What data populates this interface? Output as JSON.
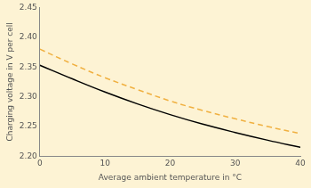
{
  "chart_data": {
    "type": "line",
    "x_label": "Average ambient temperature in °C",
    "y_label": "Charging voltage in V per cell",
    "x": [
      0,
      5,
      10,
      15,
      20,
      25,
      30,
      35,
      40
    ],
    "series": [
      {
        "color": "#f0b040",
        "line_style": "dashed",
        "values": [
          2.38,
          2.355,
          2.332,
          2.312,
          2.293,
          2.277,
          2.263,
          2.25,
          2.238
        ]
      },
      {
        "color": "#000000",
        "line_style": "solid",
        "values": [
          2.353,
          2.33,
          2.308,
          2.288,
          2.27,
          2.254,
          2.24,
          2.227,
          2.215
        ]
      }
    ],
    "xlim": [
      0,
      40
    ],
    "xticks": [
      0,
      10,
      20,
      30,
      40
    ],
    "ylim": [
      2.2,
      2.45
    ],
    "yticks": [
      {
        "value": 2.2,
        "label": "2.20"
      },
      2.25,
      {
        "value": 2.3,
        "label": "2.30"
      },
      2.35,
      {
        "value": 2.4,
        "label": "2.40"
      },
      2.45
    ],
    "grid": false
  }
}
